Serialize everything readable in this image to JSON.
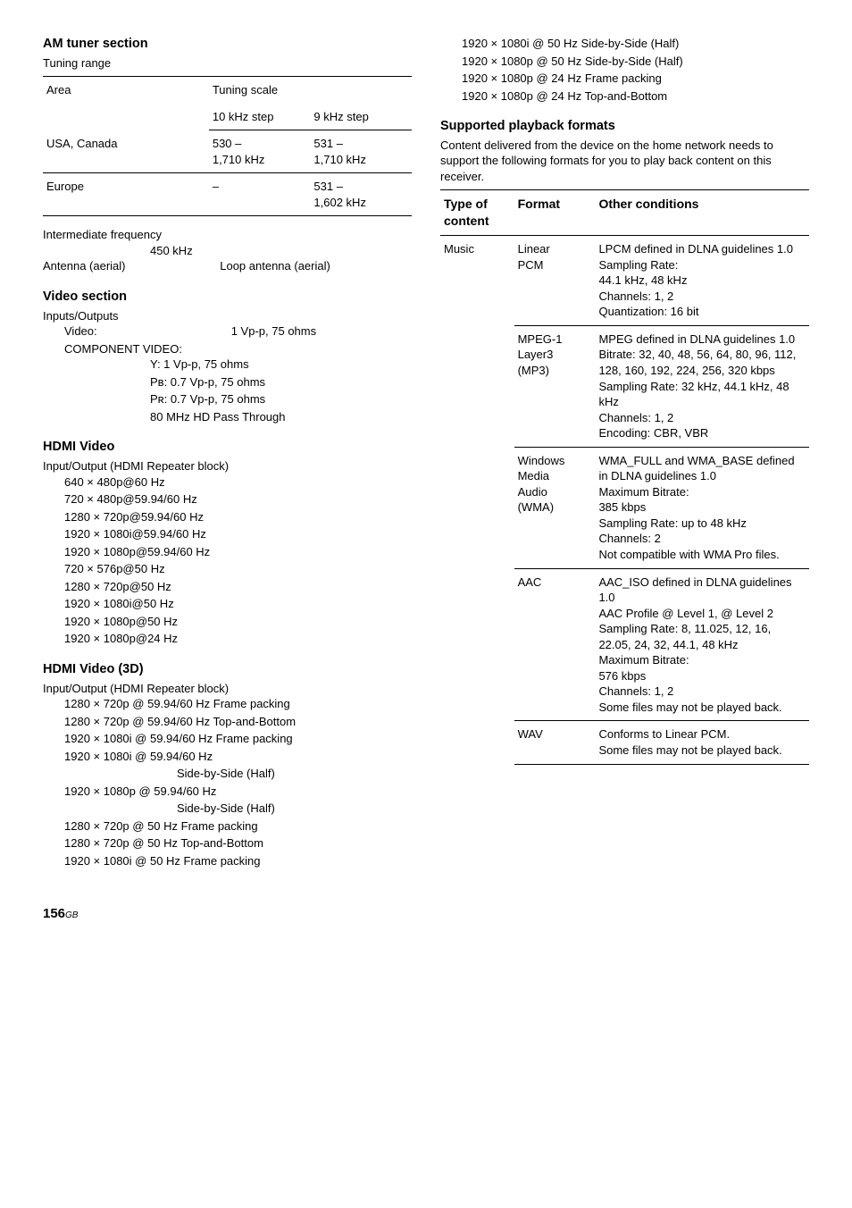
{
  "col1": {
    "am_tuner": {
      "heading": "AM tuner section",
      "sub": "Tuning range",
      "table": {
        "head": {
          "area": "Area",
          "scale": "Tuning scale",
          "step10": "10 kHz step",
          "step9": "9 kHz step"
        },
        "rows": [
          {
            "area": "USA, Canada",
            "c1a": "530 –",
            "c1b": "1,710 kHz",
            "c2a": "531 –",
            "c2b": "1,710 kHz"
          },
          {
            "area": "Europe",
            "c1a": "–",
            "c1b": "",
            "c2a": "531 –",
            "c2b": "1,602 kHz"
          }
        ]
      },
      "intermediate": {
        "label": "Intermediate frequency",
        "value": "450 kHz"
      },
      "antenna": {
        "label": "Antenna (aerial)",
        "value": "Loop antenna (aerial)"
      }
    },
    "video": {
      "heading": "Video section",
      "io": "Inputs/Outputs",
      "video_label": "Video:",
      "video_value": "1 Vp-p, 75 ohms",
      "component": "COMPONENT VIDEO:",
      "lines": [
        "Y: 1 Vp-p, 75 ohms",
        "Pʙ: 0.7 Vp-p, 75 ohms",
        "Pʀ: 0.7 Vp-p, 75 ohms",
        "80 MHz HD Pass Through"
      ]
    },
    "hdmi_video": {
      "heading": "HDMI Video",
      "sub": "Input/Output (HDMI Repeater block)",
      "lines": [
        "640 × 480p@60 Hz",
        "720 × 480p@59.94/60 Hz",
        "1280 × 720p@59.94/60 Hz",
        "1920 × 1080i@59.94/60 Hz",
        "1920 × 1080p@59.94/60 Hz",
        "720 × 576p@50 Hz",
        "1280 × 720p@50 Hz",
        "1920 × 1080i@50 Hz",
        "1920 × 1080p@50 Hz",
        "1920 × 1080p@24 Hz"
      ]
    },
    "hdmi_3d": {
      "heading": "HDMI Video (3D)",
      "sub": "Input/Output (HDMI Repeater block)",
      "lines": [
        {
          "t": "1280 × 720p @ 59.94/60 Hz Frame packing",
          "i": 1
        },
        {
          "t": "1280 × 720p @ 59.94/60 Hz Top-and-Bottom",
          "i": 1
        },
        {
          "t": "1920 × 1080i @ 59.94/60 Hz Frame packing",
          "i": 1
        },
        {
          "t": "1920 × 1080i @ 59.94/60 Hz",
          "i": 1
        },
        {
          "t": "Side-by-Side (Half)",
          "i": 3
        },
        {
          "t": "1920 × 1080p @ 59.94/60 Hz",
          "i": 1
        },
        {
          "t": "Side-by-Side (Half)",
          "i": 3
        },
        {
          "t": "1280 × 720p @ 50 Hz Frame packing",
          "i": 1
        },
        {
          "t": "1280 × 720p @ 50 Hz Top-and-Bottom",
          "i": 1
        },
        {
          "t": "1920 × 1080i @ 50 Hz Frame packing",
          "i": 1
        }
      ]
    }
  },
  "col2": {
    "top_lines": [
      "1920 × 1080i @ 50 Hz Side-by-Side (Half)",
      "1920 × 1080p @ 50 Hz Side-by-Side (Half)",
      "1920 × 1080p @ 24 Hz Frame packing",
      "1920 × 1080p @ 24 Hz Top-and-Bottom"
    ],
    "supported": {
      "heading": "Supported playback formats",
      "desc": "Content delivered from the device on the home network needs to support the following formats for you to play back content on this receiver.",
      "head": {
        "c1a": "Type of",
        "c1b": "content",
        "c2": "Format",
        "c3": "Other conditions"
      },
      "rows": [
        {
          "type": "Music",
          "format": "Linear\nPCM",
          "cond": "LPCM defined in DLNA guidelines 1.0\nSampling Rate:\n44.1 kHz, 48 kHz\nChannels: 1, 2\nQuantization: 16 bit",
          "first": true
        },
        {
          "type": "",
          "format": "MPEG-1\nLayer3\n(MP3)",
          "cond": "MPEG defined in DLNA guidelines 1.0\nBitrate: 32, 40, 48, 56, 64, 80, 96, 112, 128, 160, 192, 224, 256, 320 kbps\nSampling Rate: 32 kHz, 44.1 kHz, 48 kHz\nChannels: 1, 2\nEncoding: CBR, VBR"
        },
        {
          "type": "",
          "format": "Windows\nMedia\nAudio\n(WMA)",
          "cond": "WMA_FULL and WMA_BASE defined in DLNA guidelines 1.0\nMaximum Bitrate:\n385 kbps\nSampling Rate: up to 48 kHz\nChannels: 2\nNot compatible with WMA Pro files."
        },
        {
          "type": "",
          "format": "AAC",
          "cond": "AAC_ISO defined in DLNA guidelines 1.0\nAAC Profile @ Level 1, @ Level 2\nSampling Rate: 8, 11.025, 12, 16, 22.05, 24, 32, 44.1, 48 kHz\nMaximum Bitrate:\n576 kbps\nChannels: 1, 2\nSome files may not be played back."
        },
        {
          "type": "",
          "format": "WAV",
          "cond": "Conforms to Linear PCM.\nSome files may not be played back."
        }
      ]
    }
  },
  "footer": {
    "page": "156",
    "gb": "GB"
  }
}
